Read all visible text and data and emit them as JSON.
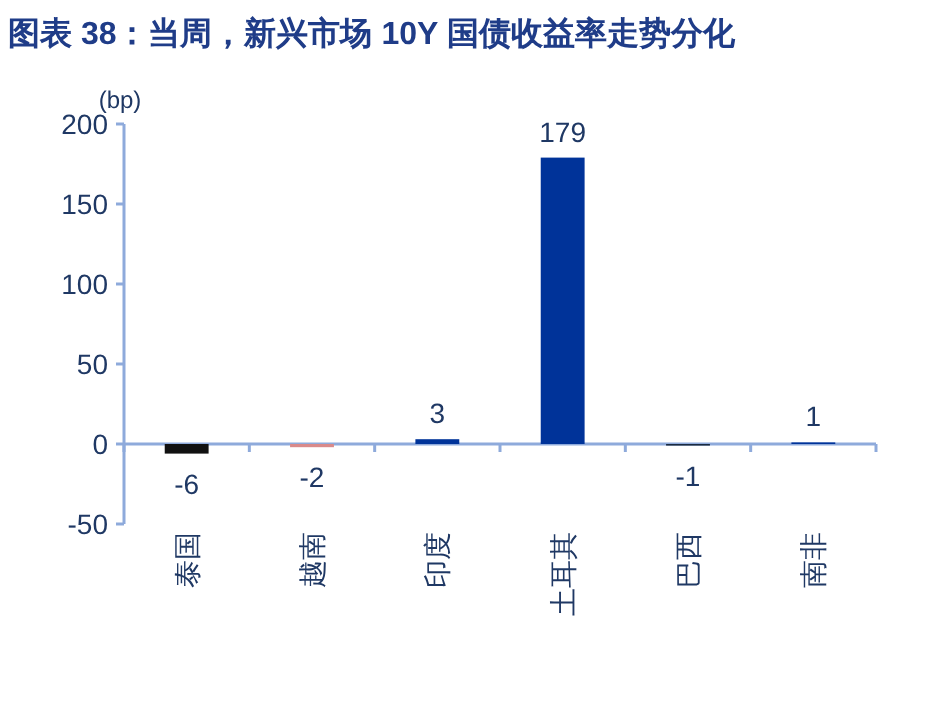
{
  "chart_data": {
    "type": "bar",
    "title": "图表 38：当周，新兴市场 10Y 国债收益率走势分化",
    "ylabel": "(bp)",
    "categories": [
      "泰国",
      "越南",
      "印度",
      "土耳其",
      "巴西",
      "南非"
    ],
    "values": [
      -6,
      -2,
      3,
      179,
      -1,
      1
    ],
    "colors": [
      "#111111",
      "#d98a8a",
      "#003399",
      "#003399",
      "#1a2a40",
      "#003399"
    ],
    "ylim": [
      -50,
      200
    ],
    "yticks": [
      -50,
      0,
      50,
      100,
      150,
      200
    ],
    "data_labels": true,
    "grid": false,
    "ref_lines": [
      {
        "axis": "y",
        "value": 0,
        "color": "#8eaadb"
      }
    ]
  }
}
